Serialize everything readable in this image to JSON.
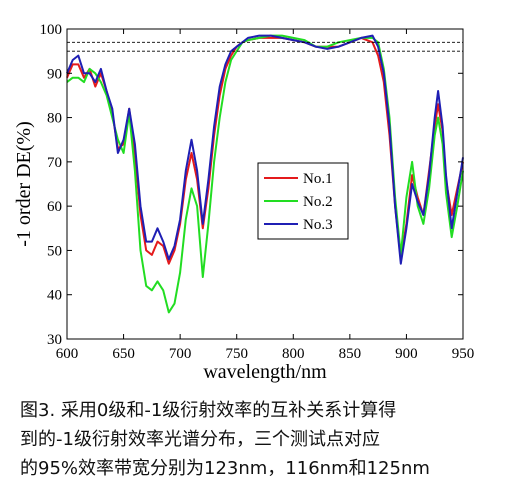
{
  "chart_data": {
    "type": "line",
    "xlabel": "wavelength/nm",
    "ylabel": "-1 order DE(%)",
    "xlim": [
      600,
      950
    ],
    "ylim": [
      30,
      100
    ],
    "xticks": [
      600,
      650,
      700,
      750,
      800,
      850,
      900,
      950
    ],
    "yticks": [
      30,
      40,
      50,
      60,
      70,
      80,
      90,
      100
    ],
    "grid": false,
    "legend_position": "center-right",
    "reference_lines": [
      97,
      95
    ],
    "series": [
      {
        "name": "No.1",
        "color": "#e41a1c",
        "x": [
          600,
          605,
          610,
          615,
          620,
          625,
          630,
          635,
          640,
          645,
          650,
          655,
          660,
          665,
          670,
          675,
          680,
          685,
          690,
          695,
          700,
          705,
          710,
          715,
          720,
          725,
          730,
          735,
          740,
          745,
          750,
          755,
          760,
          770,
          780,
          790,
          800,
          810,
          820,
          830,
          840,
          850,
          860,
          870,
          875,
          880,
          885,
          890,
          895,
          900,
          905,
          910,
          915,
          920,
          925,
          928,
          932,
          935,
          940,
          945,
          950
        ],
        "y": [
          89,
          92,
          92,
          89,
          91,
          87,
          90,
          86,
          81,
          73,
          74,
          82,
          72,
          58,
          50,
          49,
          52,
          51,
          47,
          50,
          56,
          66,
          72,
          66,
          55,
          64,
          76,
          85,
          91,
          94,
          96,
          97,
          97.5,
          98,
          98,
          98,
          97.5,
          97,
          96,
          96,
          96,
          97,
          98,
          97,
          94,
          88,
          76,
          60,
          48,
          56,
          67,
          62,
          58,
          68,
          78,
          83,
          77,
          66,
          58,
          64,
          70
        ]
      },
      {
        "name": "No.2",
        "color": "#22dd22",
        "x": [
          600,
          605,
          610,
          615,
          620,
          625,
          630,
          635,
          640,
          645,
          650,
          655,
          660,
          665,
          670,
          675,
          680,
          685,
          690,
          695,
          700,
          705,
          710,
          715,
          720,
          725,
          730,
          735,
          740,
          745,
          750,
          755,
          760,
          770,
          780,
          790,
          800,
          810,
          820,
          830,
          840,
          850,
          860,
          870,
          875,
          880,
          885,
          890,
          895,
          900,
          905,
          910,
          915,
          920,
          925,
          928,
          932,
          935,
          940,
          945,
          950
        ],
        "y": [
          88,
          89,
          89,
          88,
          91,
          90,
          88,
          85,
          80,
          75,
          72,
          81,
          68,
          50,
          42,
          41,
          43,
          41,
          36,
          38,
          45,
          57,
          64,
          60,
          44,
          56,
          70,
          80,
          88,
          93,
          95,
          97,
          97.5,
          98,
          98.5,
          98.5,
          98,
          97.5,
          96,
          96,
          97,
          97.5,
          98,
          98,
          97,
          91,
          80,
          62,
          49,
          62,
          70,
          60,
          56,
          64,
          76,
          80,
          74,
          63,
          53,
          60,
          68
        ]
      },
      {
        "name": "No.3",
        "color": "#1f1fb4",
        "x": [
          600,
          605,
          610,
          615,
          620,
          625,
          630,
          635,
          640,
          645,
          650,
          655,
          660,
          665,
          670,
          675,
          680,
          685,
          690,
          695,
          700,
          705,
          710,
          715,
          720,
          725,
          730,
          735,
          740,
          745,
          750,
          755,
          760,
          770,
          780,
          790,
          800,
          810,
          820,
          830,
          840,
          850,
          860,
          870,
          875,
          880,
          885,
          890,
          895,
          900,
          905,
          910,
          915,
          920,
          925,
          928,
          932,
          935,
          940,
          945,
          950
        ],
        "y": [
          90,
          93,
          94,
          90,
          90,
          88,
          91,
          86,
          82,
          72,
          75,
          82,
          74,
          60,
          52,
          52,
          55,
          52,
          48,
          51,
          57,
          68,
          75,
          68,
          56,
          66,
          78,
          87,
          92,
          95,
          96,
          97,
          98,
          98.5,
          98.5,
          98,
          97.5,
          97,
          96,
          95.5,
          96,
          97,
          98,
          98.5,
          96,
          90,
          78,
          60,
          47,
          55,
          65,
          61,
          58,
          67,
          80,
          86,
          78,
          67,
          55,
          63,
          71
        ]
      }
    ]
  },
  "caption": {
    "lines": [
      "图3. 采用0级和-1级衍射效率的互补关系计算得",
      "到的-1级衍射效率光谱分布，三个测试点对应",
      "的95%效率带宽分别为123nm，116nm和125nm"
    ]
  }
}
